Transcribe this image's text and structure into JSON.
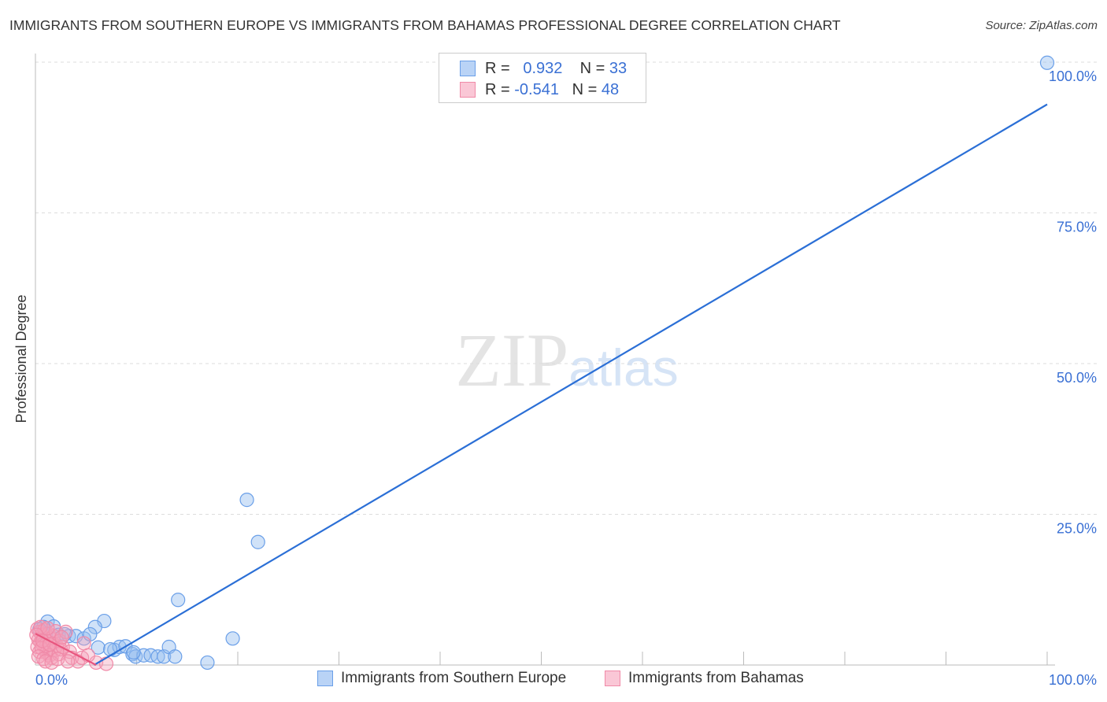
{
  "title": "IMMIGRANTS FROM SOUTHERN EUROPE VS IMMIGRANTS FROM BAHAMAS PROFESSIONAL DEGREE CORRELATION CHART",
  "source": "Source: ZipAtlas.com",
  "watermark": "ZIPatlas",
  "chart_data": {
    "type": "scatter",
    "xlabel": "",
    "ylabel": "Professional Degree",
    "xlim": [
      0,
      100
    ],
    "ylim": [
      0,
      100
    ],
    "x_tick_labels": [
      "0.0%",
      "100.0%"
    ],
    "y_ticks": [
      25,
      50,
      75,
      100
    ],
    "y_tick_labels": [
      "25.0%",
      "50.0%",
      "75.0%",
      "100.0%"
    ],
    "grid": true,
    "legend": {
      "placement": "top-center",
      "rows": [
        {
          "r_label": "R =",
          "r": "0.932",
          "n_label": "N =",
          "n": "33"
        },
        {
          "r_label": "R =",
          "r": "-0.541",
          "n_label": "N =",
          "n": "48"
        }
      ]
    },
    "series": [
      {
        "name": "Immigrants from Southern Europe",
        "color": "#6a9fe8",
        "line_color": "#2b6fd6",
        "trend": [
          [
            5.8,
            0
          ],
          [
            100,
            93
          ]
        ],
        "points": [
          [
            100,
            99.9
          ],
          [
            20.9,
            27.4
          ],
          [
            22.0,
            20.4
          ],
          [
            14.1,
            10.8
          ],
          [
            19.5,
            4.4
          ],
          [
            6.8,
            7.3
          ],
          [
            5.9,
            6.3
          ],
          [
            1.2,
            7.2
          ],
          [
            1.8,
            6.4
          ],
          [
            0.8,
            6.3
          ],
          [
            2.3,
            5.0
          ],
          [
            3.3,
            4.8
          ],
          [
            4.0,
            4.8
          ],
          [
            4.8,
            4.4
          ],
          [
            5.4,
            5.1
          ],
          [
            6.2,
            2.9
          ],
          [
            7.8,
            2.5
          ],
          [
            8.3,
            3.0
          ],
          [
            8.9,
            3.1
          ],
          [
            9.6,
            1.8
          ],
          [
            9.9,
            1.4
          ],
          [
            10.7,
            1.6
          ],
          [
            11.4,
            1.6
          ],
          [
            12.1,
            1.4
          ],
          [
            12.7,
            1.4
          ],
          [
            13.2,
            3.0
          ],
          [
            13.8,
            1.4
          ],
          [
            17.0,
            0.4
          ],
          [
            7.4,
            2.6
          ],
          [
            0.4,
            5.9
          ],
          [
            2.9,
            5.1
          ],
          [
            9.7,
            2.1
          ],
          [
            1.0,
            5.2
          ]
        ]
      },
      {
        "name": "Immigrants from Bahamas",
        "color": "#f08aa8",
        "line_color": "#e8557e",
        "trend": [
          [
            0,
            5.2
          ],
          [
            6,
            0
          ]
        ],
        "points": [
          [
            0.2,
            6.0
          ],
          [
            0.4,
            5.5
          ],
          [
            0.6,
            5.0
          ],
          [
            0.8,
            4.6
          ],
          [
            0.3,
            4.2
          ],
          [
            0.5,
            3.8
          ],
          [
            0.7,
            3.4
          ],
          [
            1.0,
            3.0
          ],
          [
            1.2,
            2.6
          ],
          [
            0.4,
            2.2
          ],
          [
            0.9,
            5.8
          ],
          [
            1.3,
            5.2
          ],
          [
            1.5,
            4.4
          ],
          [
            1.7,
            3.6
          ],
          [
            1.1,
            2.0
          ],
          [
            1.9,
            2.4
          ],
          [
            2.1,
            3.2
          ],
          [
            0.2,
            3.0
          ],
          [
            0.6,
            2.8
          ],
          [
            1.4,
            1.6
          ],
          [
            1.6,
            1.2
          ],
          [
            2.3,
            1.8
          ],
          [
            2.5,
            2.6
          ],
          [
            0.3,
            1.4
          ],
          [
            0.8,
            1.0
          ],
          [
            1.8,
            4.8
          ],
          [
            2.0,
            5.6
          ],
          [
            2.4,
            4.0
          ],
          [
            2.7,
            3.0
          ],
          [
            0.5,
            6.3
          ],
          [
            1.2,
            6.1
          ],
          [
            3.0,
            5.5
          ],
          [
            3.4,
            2.2
          ],
          [
            1.0,
            0.6
          ],
          [
            1.6,
            0.4
          ],
          [
            2.2,
            1.0
          ],
          [
            3.6,
            1.2
          ],
          [
            4.2,
            0.6
          ],
          [
            4.6,
            1.2
          ],
          [
            6.0,
            0.4
          ],
          [
            4.8,
            3.6
          ],
          [
            5.2,
            1.6
          ],
          [
            3.2,
            0.6
          ],
          [
            7.0,
            0.2
          ],
          [
            0.1,
            5.0
          ],
          [
            0.7,
            4.0
          ],
          [
            1.4,
            3.4
          ],
          [
            2.6,
            4.6
          ]
        ]
      }
    ]
  }
}
